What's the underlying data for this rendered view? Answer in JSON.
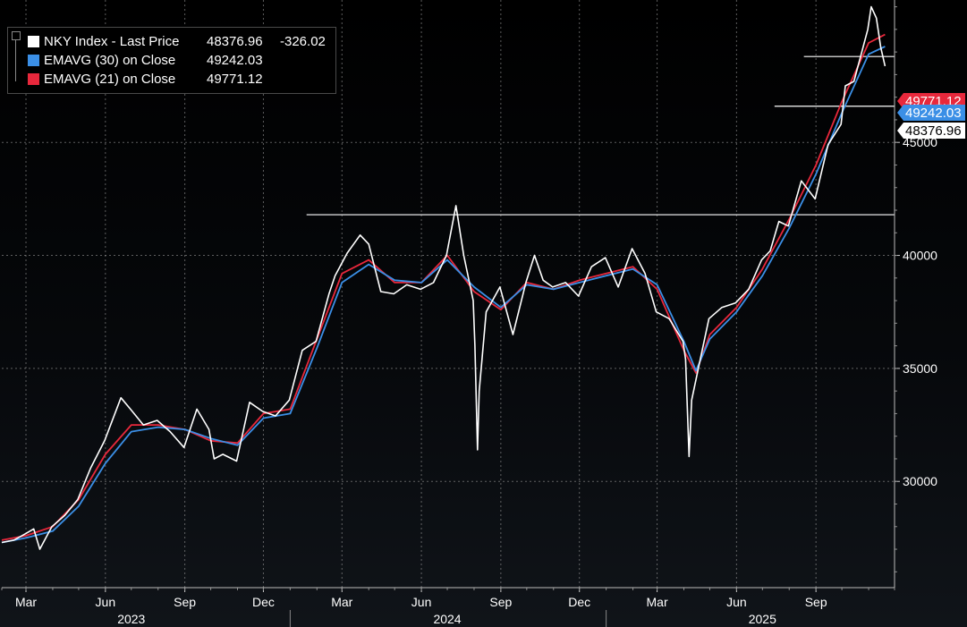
{
  "chart_data": {
    "type": "line",
    "title": "",
    "xlabel": "",
    "ylabel": "",
    "ylim": [
      25300,
      51300
    ],
    "xlim": [
      "2023-02-01",
      "2025-12-01"
    ],
    "grid": true,
    "y_ticks": [
      30000,
      35000,
      40000,
      45000
    ],
    "y_tick_labels": [
      "30000",
      "35000",
      "40000",
      "45000"
    ],
    "x_month_ticks": [
      {
        "date": "2023-03-01",
        "label": "Mar"
      },
      {
        "date": "2023-06-01",
        "label": "Jun"
      },
      {
        "date": "2023-09-01",
        "label": "Sep"
      },
      {
        "date": "2023-12-01",
        "label": "Dec"
      },
      {
        "date": "2024-03-01",
        "label": "Mar"
      },
      {
        "date": "2024-06-01",
        "label": "Jun"
      },
      {
        "date": "2024-09-01",
        "label": "Sep"
      },
      {
        "date": "2024-12-01",
        "label": "Dec"
      },
      {
        "date": "2025-03-01",
        "label": "Mar"
      },
      {
        "date": "2025-06-01",
        "label": "Jun"
      },
      {
        "date": "2025-09-01",
        "label": "Sep"
      }
    ],
    "x_year_labels": [
      {
        "label": "2023",
        "center": "2023-07-01"
      },
      {
        "label": "2024",
        "center": "2024-07-01"
      },
      {
        "label": "2025",
        "center": "2025-07-01"
      }
    ],
    "year_separators": [
      "2024-01-01",
      "2025-01-01"
    ],
    "legend": {
      "placement": "top-left",
      "entries": [
        {
          "label": "NKY Index - Last Price",
          "value": "48376.96",
          "change": "-326.02",
          "color": "#ffffff"
        },
        {
          "label": "EMAVG (30)  on Close",
          "value": "49242.03",
          "color": "#3b8fe6"
        },
        {
          "label": "EMAVG (21)  on Close",
          "value": "49771.12",
          "color": "#e8283c"
        }
      ]
    },
    "right_axis_tags": [
      {
        "value": 49771.12,
        "label": "49771.12",
        "bg": "#e8283c",
        "fg": "#ffffff"
      },
      {
        "value": 49242.03,
        "label": "49242.03",
        "bg": "#3b8fe6",
        "fg": "#ffffff"
      },
      {
        "value": 48376.96,
        "label": "48376.96",
        "bg": "#ffffff",
        "fg": "#000000"
      }
    ],
    "reference_lines": [
      {
        "y": 41800,
        "from": "2024-01-20",
        "to": "2025-12-01"
      },
      {
        "y": 46600,
        "from": "2025-07-15",
        "to": "2025-12-01"
      },
      {
        "y": 48800,
        "from": "2025-08-18",
        "to": "2025-12-01"
      }
    ],
    "series": [
      {
        "name": "NKY Index - Last Price",
        "color": "#ffffff",
        "x": [
          "2023-02-01",
          "2023-02-15",
          "2023-03-01",
          "2023-03-10",
          "2023-03-17",
          "2023-03-31",
          "2023-04-15",
          "2023-04-30",
          "2023-05-15",
          "2023-05-31",
          "2023-06-19",
          "2023-06-30",
          "2023-07-15",
          "2023-07-31",
          "2023-08-15",
          "2023-08-31",
          "2023-09-15",
          "2023-09-29",
          "2023-10-05",
          "2023-10-15",
          "2023-10-31",
          "2023-11-15",
          "2023-11-30",
          "2023-12-15",
          "2023-12-31",
          "2024-01-15",
          "2024-01-31",
          "2024-02-15",
          "2024-02-22",
          "2024-03-07",
          "2024-03-22",
          "2024-04-01",
          "2024-04-15",
          "2024-04-30",
          "2024-05-15",
          "2024-05-31",
          "2024-06-15",
          "2024-06-30",
          "2024-07-11",
          "2024-07-20",
          "2024-07-31",
          "2024-08-02",
          "2024-08-05",
          "2024-08-07",
          "2024-08-15",
          "2024-08-31",
          "2024-09-15",
          "2024-09-30",
          "2024-10-10",
          "2024-10-20",
          "2024-10-31",
          "2024-11-15",
          "2024-11-30",
          "2024-12-15",
          "2024-12-31",
          "2025-01-15",
          "2025-01-31",
          "2025-02-15",
          "2025-02-28",
          "2025-03-15",
          "2025-03-31",
          "2025-04-03",
          "2025-04-07",
          "2025-04-10",
          "2025-04-20",
          "2025-04-30",
          "2025-05-15",
          "2025-05-31",
          "2025-06-15",
          "2025-06-30",
          "2025-07-10",
          "2025-07-20",
          "2025-07-31",
          "2025-08-15",
          "2025-08-31",
          "2025-09-15",
          "2025-09-30",
          "2025-10-05",
          "2025-10-15",
          "2025-10-31",
          "2025-11-04",
          "2025-11-10",
          "2025-11-15",
          "2025-11-20"
        ],
        "values": [
          27300,
          27400,
          27700,
          27900,
          27000,
          28000,
          28500,
          29200,
          30600,
          31800,
          33700,
          33200,
          32500,
          32700,
          32200,
          31500,
          33200,
          32300,
          31000,
          31200,
          30900,
          33500,
          33100,
          32900,
          33600,
          35800,
          36200,
          38300,
          39100,
          40100,
          40900,
          40500,
          38400,
          38300,
          38700,
          38500,
          38800,
          40000,
          42200,
          40000,
          38000,
          36000,
          31400,
          34000,
          37500,
          38600,
          36500,
          38800,
          40000,
          38900,
          38600,
          38800,
          38200,
          39500,
          39900,
          38600,
          40300,
          39200,
          37500,
          37200,
          36200,
          35400,
          31100,
          33600,
          35400,
          37200,
          37700,
          37900,
          38500,
          39800,
          40200,
          41500,
          41300,
          43300,
          42500,
          44900,
          45800,
          47500,
          47700,
          50000,
          51000,
          50500,
          49200,
          48376.96
        ]
      },
      {
        "name": "EMAVG (21)  on Close",
        "color": "#e8283c",
        "x": [
          "2023-02-01",
          "2023-03-01",
          "2023-04-01",
          "2023-05-01",
          "2023-06-01",
          "2023-07-01",
          "2023-08-01",
          "2023-09-01",
          "2023-10-01",
          "2023-11-01",
          "2023-12-01",
          "2024-01-01",
          "2024-02-01",
          "2024-03-01",
          "2024-04-01",
          "2024-05-01",
          "2024-06-01",
          "2024-07-01",
          "2024-08-01",
          "2024-09-01",
          "2024-10-01",
          "2024-11-01",
          "2024-12-01",
          "2025-01-01",
          "2025-02-01",
          "2025-03-01",
          "2025-04-01",
          "2025-04-15",
          "2025-05-01",
          "2025-06-01",
          "2025-07-01",
          "2025-08-01",
          "2025-09-01",
          "2025-10-01",
          "2025-11-01",
          "2025-11-20"
        ],
        "values": [
          27400,
          27600,
          28000,
          29200,
          31200,
          32500,
          32500,
          32300,
          31800,
          31700,
          33000,
          33200,
          36300,
          39200,
          39800,
          38800,
          38800,
          40000,
          38400,
          37600,
          38800,
          38500,
          38900,
          39200,
          39500,
          38500,
          35800,
          34800,
          36500,
          37700,
          39400,
          41600,
          44000,
          46800,
          49400,
          49771.12
        ]
      },
      {
        "name": "EMAVG (30)  on Close",
        "color": "#3b8fe6",
        "x": [
          "2023-02-01",
          "2023-03-01",
          "2023-04-01",
          "2023-05-01",
          "2023-06-01",
          "2023-07-01",
          "2023-08-01",
          "2023-09-01",
          "2023-10-01",
          "2023-11-01",
          "2023-12-01",
          "2024-01-01",
          "2024-02-01",
          "2024-03-01",
          "2024-04-01",
          "2024-05-01",
          "2024-06-01",
          "2024-07-01",
          "2024-08-01",
          "2024-09-01",
          "2024-10-01",
          "2024-11-01",
          "2024-12-01",
          "2025-01-01",
          "2025-02-01",
          "2025-03-01",
          "2025-04-01",
          "2025-04-15",
          "2025-05-01",
          "2025-06-01",
          "2025-07-01",
          "2025-08-01",
          "2025-09-01",
          "2025-10-01",
          "2025-11-01",
          "2025-11-20"
        ],
        "values": [
          27300,
          27500,
          27800,
          28900,
          30800,
          32200,
          32400,
          32300,
          31900,
          31600,
          32800,
          33000,
          35900,
          38800,
          39600,
          38900,
          38800,
          39800,
          38600,
          37700,
          38700,
          38500,
          38800,
          39100,
          39400,
          38700,
          36200,
          34900,
          36300,
          37500,
          39100,
          41200,
          43600,
          46300,
          48900,
          49242.03
        ]
      }
    ]
  }
}
